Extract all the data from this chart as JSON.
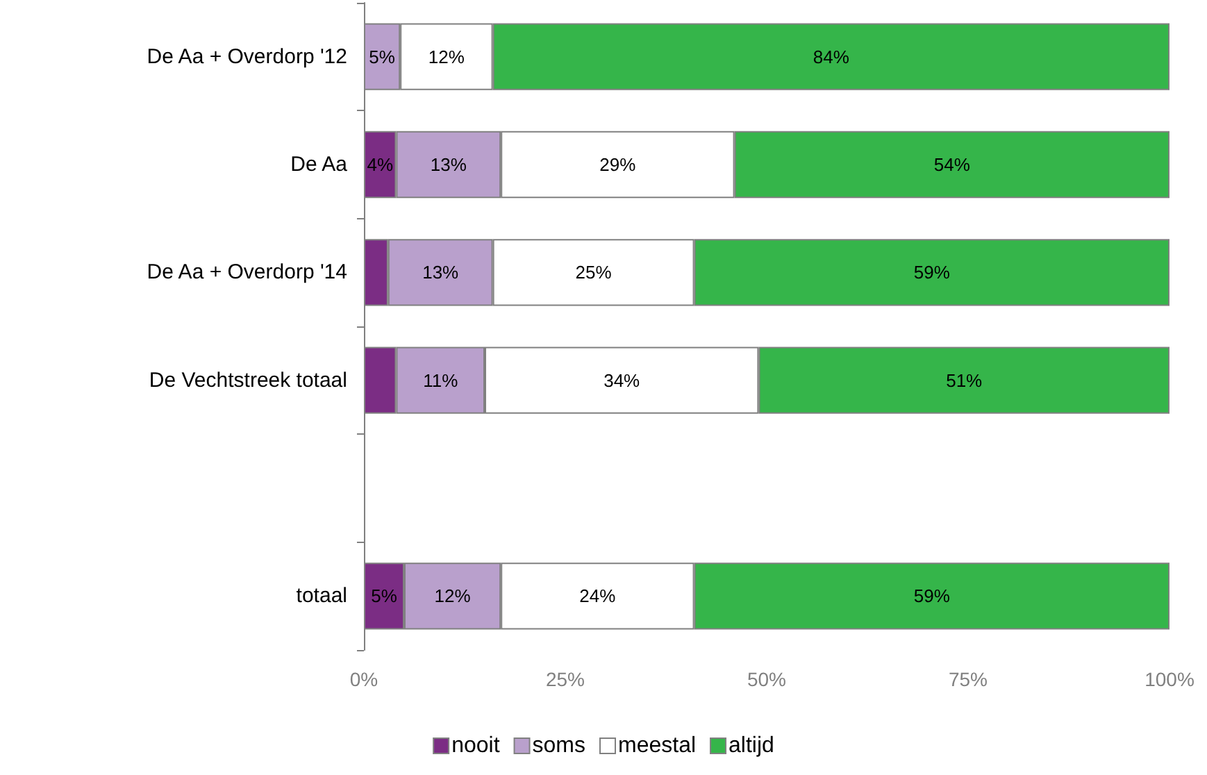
{
  "chart_data": {
    "type": "bar",
    "orientation": "horizontal",
    "stacked": true,
    "legend": "bottom",
    "grid": false,
    "categories": [
      "De Aa + Overdorp '12",
      "De Aa",
      "De Aa + Overdorp '14",
      "De Vechtstreek totaal",
      null,
      "totaal"
    ],
    "series": [
      {
        "name": "nooit",
        "color": "#7b2d84",
        "values": [
          null,
          4,
          3,
          4,
          null,
          5
        ],
        "value_labels": [
          null,
          "4%",
          null,
          null,
          null,
          "5%"
        ]
      },
      {
        "name": "soms",
        "color": "#b9a0cc",
        "values": [
          4.5,
          13,
          13,
          11,
          null,
          12
        ],
        "value_labels": [
          "5%",
          "13%",
          "13%",
          "11%",
          null,
          "12%"
        ]
      },
      {
        "name": "meestal",
        "color": "#ffffff",
        "values": [
          11.5,
          29,
          25,
          34,
          null,
          24
        ],
        "value_labels": [
          "12%",
          "29%",
          "25%",
          "34%",
          null,
          "24%"
        ]
      },
      {
        "name": "altijd",
        "color": "#35b54a",
        "values": [
          84,
          54,
          59,
          51,
          null,
          59
        ],
        "value_labels": [
          "84%",
          "54%",
          "59%",
          "51%",
          null,
          "59%"
        ]
      }
    ],
    "xlim": [
      0,
      100
    ],
    "xticks": [
      {
        "value": 0,
        "label": "0%"
      },
      {
        "value": 25,
        "label": "25%"
      },
      {
        "value": 50,
        "label": "50%"
      },
      {
        "value": 75,
        "label": "75%"
      },
      {
        "value": 100,
        "label": "100%"
      }
    ]
  }
}
